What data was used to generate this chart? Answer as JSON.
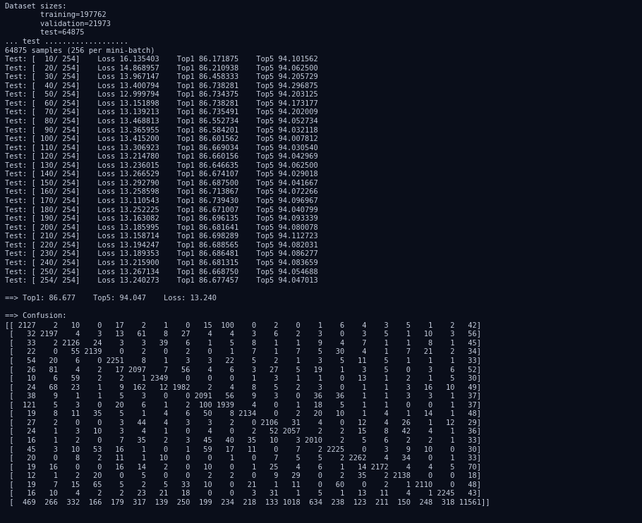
{
  "bg_color": "#0a0e1a",
  "text_color": "#c8d0e0",
  "font_size": 7.5,
  "figsize": [
    9.1,
    7.42
  ],
  "dpi": 100,
  "title_lines": [
    "Dataset sizes:",
    "        training=197762",
    "        validation=21973",
    "        test=64875",
    "... test ...................",
    "64875 samples (256 per mini-batch)"
  ],
  "test_lines": [
    "Test: [  10/ 254]    Loss 16.135403    Top1 86.171875    Top5 94.101562",
    "Test: [  20/ 254]    Loss 14.868957    Top1 86.210938    Top5 94.062500",
    "Test: [  30/ 254]    Loss 13.967147    Top1 86.458333    Top5 94.205729",
    "Test: [  40/ 254]    Loss 13.400794    Top1 86.738281    Top5 94.296875",
    "Test: [  50/ 254]    Loss 12.999794    Top1 86.734375    Top5 94.203125",
    "Test: [  60/ 254]    Loss 13.151898    Top1 86.738281    Top5 94.173177",
    "Test: [  70/ 254]    Loss 13.139213    Top1 86.735491    Top5 94.202009",
    "Test: [  80/ 254]    Loss 13.468813    Top1 86.552734    Top5 94.052734",
    "Test: [  90/ 254]    Loss 13.365955    Top1 86.584201    Top5 94.032118",
    "Test: [ 100/ 254]    Loss 13.415200    Top1 86.601562    Top5 94.007812",
    "Test: [ 110/ 254]    Loss 13.306923    Top1 86.669034    Top5 94.030540",
    "Test: [ 120/ 254]    Loss 13.214780    Top1 86.660156    Top5 94.042969",
    "Test: [ 130/ 254]    Loss 13.236015    Top1 86.646635    Top5 94.062500",
    "Test: [ 140/ 254]    Loss 13.266529    Top1 86.674107    Top5 94.029018",
    "Test: [ 150/ 254]    Loss 13.292790    Top1 86.687500    Top5 94.041667",
    "Test: [ 160/ 254]    Loss 13.258598    Top1 86.713867    Top5 94.072266",
    "Test: [ 170/ 254]    Loss 13.110543    Top1 86.739430    Top5 94.096967",
    "Test: [ 180/ 254]    Loss 13.252225    Top1 86.671007    Top5 94.040799",
    "Test: [ 190/ 254]    Loss 13.163082    Top1 86.696135    Top5 94.093339",
    "Test: [ 200/ 254]    Loss 13.185995    Top1 86.681641    Top5 94.080078",
    "Test: [ 210/ 254]    Loss 13.158714    Top1 86.698289    Top5 94.112723",
    "Test: [ 220/ 254]    Loss 13.194247    Top1 86.688565    Top5 94.082031",
    "Test: [ 230/ 254]    Loss 13.189353    Top1 86.686481    Top5 94.086277",
    "Test: [ 240/ 254]    Loss 13.215900    Top1 86.681315    Top5 94.083659",
    "Test: [ 250/ 254]    Loss 13.267134    Top1 86.668750    Top5 94.054688",
    "Test: [ 254/ 254]    Loss 13.240273    Top1 86.677457    Top5 94.047013"
  ],
  "summary_line": "==> Top1: 86.677    Top5: 94.047    Loss: 13.240",
  "confusion_header": "==> Confusion:",
  "confusion_matrix": [
    "[[ 2127    2   10    0   17    2    1    0   15  100    0    2    0    1    6    4    3    5    1    2   42]",
    " [   32 2197    4    3   13   61    8   27    4    4    3    6    2    3    0    3    5    1   10    3   56]",
    " [   33    2 2126   24    3    3   39    6    1    5    8    1    1    9    4    7    1    1    8    1   45]",
    " [   22    0   55 2139    0    2    0    2    0    1    7    1    7    5   30    4    1    7   21    2   34]",
    " [   54   20    6    0 2251    8    1    3    3   22    5    2    1    3    5   11    5    1    1    1   33]",
    " [   26   81    4    2   17 2097    7   56    4    6    3   27    5   19    1    3    5    0    3    6   52]",
    " [   10    6   59    2    2    1 2349    0    0    0    1    3    1    1    0   13    1    2    1    5   30]",
    " [   24   68   23    1    9  162   12 1982    2    4    8    5    2    3    0    1    1    3   16   10   49]",
    " [   38    9    1    1    5    3    0    0 2091   56    9    3    0   36   36    1    1    3    3    1   37]",
    " [  121    5    3    0   20    6    1    2  100 1939    4    0    1   18    5    1    1    0    0    1   37]",
    " [   19    8   11   35    5    1    4    6   50    8 2134    0    2   20   10    1    4    1   14    1   48]",
    " [   27    2    0    0    3   44    4    3    3    2    0 2106   31    4    0   12    4   26    1   12   29]",
    " [   24    1    3   10    3    4    1    0    4    0    2   52 2057    2    2   15    8   42    4    1   36]",
    " [   16    1    2    0    7   35    2    3   45   40   35   10    3 2010    2    5    6    2    2    1   33]",
    " [   45    3   10   53   16    1    0    1   59   17   11    0    7    2 2225    0    3    9   10    0   30]",
    " [   20    0    8    2   11    1   10    0    0    1    0    7    5    5    2 2262    4   34    0    1   33]",
    " [   19   16    0    0   16   14    2    0   10    0    1   25    4    6    1   14 2172    4    4    5   70]",
    " [   12    1    2   20    0    5    0    0    2    2    0    9   29    0    2   35    2 2138    0    0   18]",
    " [   19    7   15   65    5    2    5   33   10    0   21    1   11    0   60    0    2    1 2110    0   48]",
    " [   16   10    4    2    2   23   21   18    0    0    3   31    1    5    1   13   11    4    1 2245   43]",
    " [  469  266  332  166  179  317  139  250  199  234  218  133 1018  634  238  123  211  150  248  318 11561]]"
  ]
}
